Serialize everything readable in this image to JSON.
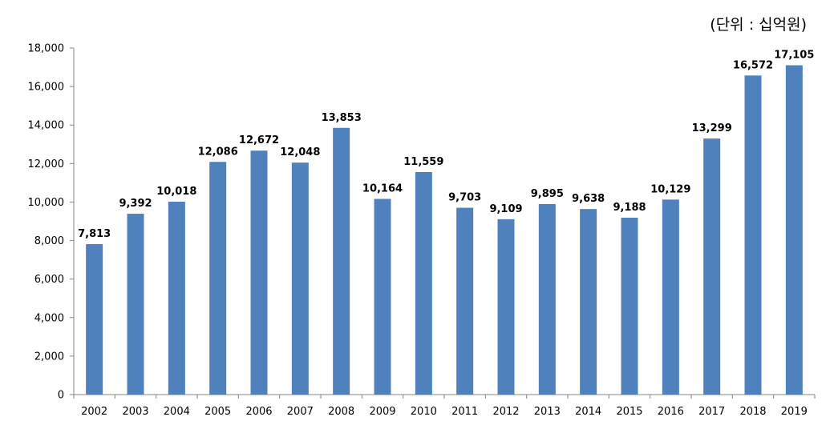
{
  "chart_data": {
    "type": "bar",
    "unit_label": "(단위 : 십억원)",
    "categories": [
      "2002",
      "2003",
      "2004",
      "2005",
      "2006",
      "2007",
      "2008",
      "2009",
      "2010",
      "2011",
      "2012",
      "2013",
      "2014",
      "2015",
      "2016",
      "2017",
      "2018",
      "2019"
    ],
    "values": [
      7813,
      9392,
      10018,
      12086,
      12672,
      12048,
      13853,
      10164,
      11559,
      9703,
      9109,
      9895,
      9638,
      9188,
      10129,
      13299,
      16572,
      17105
    ],
    "value_labels": [
      "7,813",
      "9,392",
      "10,018",
      "12,086",
      "12,672",
      "12,048",
      "13,853",
      "10,164",
      "11,559",
      "9,703",
      "9,109",
      "9,895",
      "9,638",
      "9,188",
      "10,129",
      "13,299",
      "16,572",
      "17,105"
    ],
    "y_ticks": [
      0,
      2000,
      4000,
      6000,
      8000,
      10000,
      12000,
      14000,
      16000,
      18000
    ],
    "y_tick_labels": [
      "0",
      "2,000",
      "4,000",
      "6,000",
      "8,000",
      "10,000",
      "12,000",
      "14,000",
      "16,000",
      "18,000"
    ],
    "ylim": [
      0,
      18000
    ],
    "grid": false,
    "legend": "none",
    "bar_color": "#4F81BD"
  }
}
